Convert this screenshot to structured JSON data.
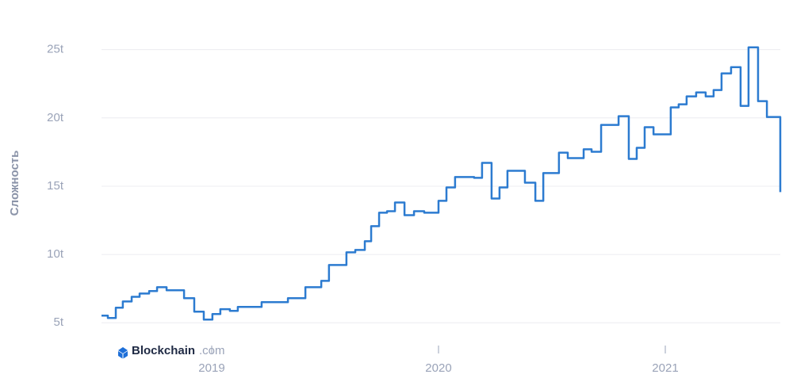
{
  "chart_data": {
    "type": "line",
    "step": true,
    "y_label": "Сложность",
    "x": [
      2018.514,
      2018.542,
      2018.577,
      2018.608,
      2018.647,
      2018.682,
      2018.724,
      2018.759,
      2018.801,
      2018.878,
      2018.923,
      2018.965,
      2019.003,
      2019.038,
      2019.08,
      2019.115,
      2019.22,
      2019.336,
      2019.413,
      2019.483,
      2019.517,
      2019.594,
      2019.633,
      2019.675,
      2019.703,
      2019.738,
      2019.773,
      2019.808,
      2019.85,
      2019.892,
      2019.937,
      2020.0,
      2020.035,
      2020.073,
      2020.157,
      2020.192,
      2020.234,
      2020.269,
      2020.304,
      2020.381,
      2020.427,
      2020.462,
      2020.531,
      2020.57,
      2020.64,
      2020.675,
      2020.717,
      2020.794,
      2020.839,
      2020.874,
      2020.909,
      2020.948,
      2021.024,
      2021.059,
      2021.094,
      2021.136,
      2021.178,
      2021.213,
      2021.248,
      2021.29,
      2021.332,
      2021.367,
      2021.409,
      2021.448,
      2021.507
    ],
    "series": [
      {
        "color": "#2c7bd0",
        "values": [
          5.52,
          5.35,
          6.1,
          6.56,
          6.9,
          7.14,
          7.32,
          7.6,
          7.38,
          6.8,
          5.81,
          5.23,
          5.64,
          5.99,
          5.87,
          6.16,
          6.51,
          6.8,
          7.6,
          8.07,
          9.23,
          10.16,
          10.33,
          10.97,
          12.07,
          13.06,
          13.17,
          13.81,
          12.88,
          13.17,
          13.06,
          13.93,
          14.91,
          15.67,
          15.61,
          16.71,
          14.1,
          14.91,
          16.13,
          15.26,
          13.93,
          15.96,
          17.46,
          17.06,
          17.7,
          17.52,
          19.49,
          20.13,
          17.0,
          17.81,
          19.32,
          18.8,
          20.77,
          21.0,
          21.58,
          21.87,
          21.58,
          22.04,
          23.26,
          23.72,
          20.88,
          25.17,
          21.23,
          20.07,
          14.57
        ]
      }
    ],
    "xlim": [
      2018.514,
      2021.507
    ],
    "xticks": [
      2019,
      2020,
      2021
    ],
    "ylim": [
      4.2,
      26.2
    ],
    "yticks": [
      {
        "value": 5,
        "label": "5t"
      },
      {
        "value": 10,
        "label": "10t"
      },
      {
        "value": 15,
        "label": "15t"
      },
      {
        "value": 20,
        "label": "20t"
      },
      {
        "value": 25,
        "label": "25t"
      }
    ],
    "grid": true
  },
  "branding": {
    "name": "Blockchain",
    "suffix": ".com"
  }
}
